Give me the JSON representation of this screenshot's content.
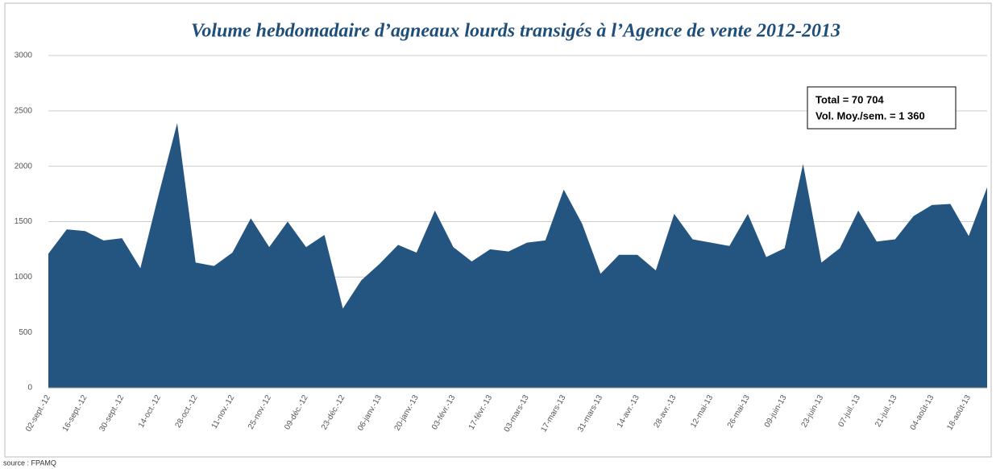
{
  "chart_data": {
    "type": "area",
    "title": "Volume hebdomadaire d’agneaux lourds transigés à l’Agence de vente 2012-2013",
    "annotations": [
      "Total = 70 704",
      "Vol. Moy./sem. = 1 360"
    ],
    "source": "source : FPAMQ",
    "color": "#245480",
    "categories": [
      "02-sept.-12",
      null,
      "16-sept.-12",
      null,
      "30-sept.-12",
      null,
      "14-oct.-12",
      null,
      "28-oct.-12",
      null,
      "11-nov.-12",
      null,
      "25-nov.-12",
      null,
      "09-déc.-12",
      null,
      "23-déc.-12",
      null,
      "06-janv.-13",
      null,
      "20-janv.-13",
      null,
      "03-févr.-13",
      null,
      "17-févr.-13",
      null,
      "03-mars-13",
      null,
      "17-mars-13",
      null,
      "31-mars-13",
      null,
      "14-avr.-13",
      null,
      "28-avr.-13",
      null,
      "12-mai-13",
      null,
      "26-mai-13",
      null,
      "09-juin-13",
      null,
      "23-juin-13",
      null,
      "07-juil.-13",
      null,
      "21-juil.-13",
      null,
      "04-août-13",
      null,
      "18-août-13",
      null
    ],
    "values": [
      1210,
      1430,
      1415,
      1330,
      1350,
      1080,
      1750,
      2390,
      1130,
      1100,
      1220,
      1530,
      1270,
      1500,
      1270,
      1380,
      715,
      970,
      1120,
      1290,
      1220,
      1600,
      1270,
      1140,
      1250,
      1230,
      1310,
      1330,
      1790,
      1480,
      1030,
      1200,
      1200,
      1060,
      1570,
      1340,
      1310,
      1280,
      1570,
      1180,
      1260,
      2020,
      1130,
      1260,
      1600,
      1320,
      1340,
      1550,
      1650,
      1660,
      1370,
      1810
    ],
    "ylim": [
      0,
      3000
    ],
    "yticks": [
      0,
      500,
      1000,
      1500,
      2000,
      2500,
      3000
    ],
    "grid": true
  }
}
